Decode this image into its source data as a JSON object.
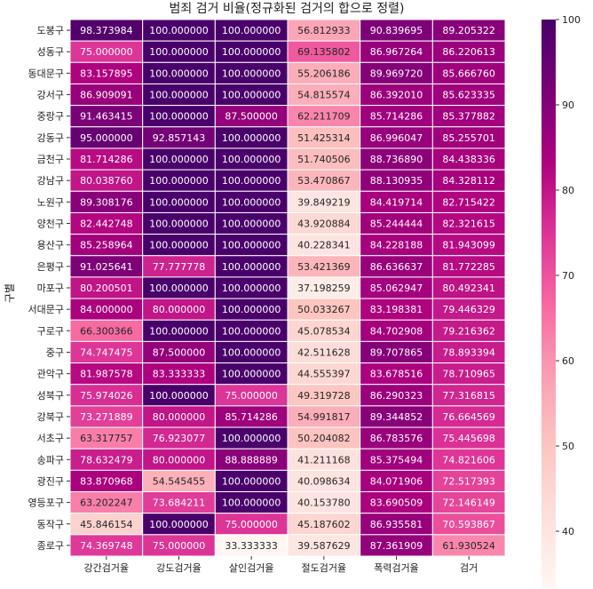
{
  "chart_data": {
    "type": "heatmap",
    "title": "범죄 검거 비율(정규화된 검거의 합으로 정렬)",
    "ylabel": "구별",
    "xlabel": "",
    "columns": [
      "강간검거율",
      "강도검거율",
      "살인검거율",
      "절도검거율",
      "폭력검거율",
      "검거"
    ],
    "rows": [
      "도봉구",
      "성동구",
      "동대문구",
      "강서구",
      "중랑구",
      "강동구",
      "금천구",
      "강남구",
      "노원구",
      "양천구",
      "용산구",
      "은평구",
      "마포구",
      "서대문구",
      "구로구",
      "중구",
      "관악구",
      "성북구",
      "강북구",
      "서초구",
      "송파구",
      "광진구",
      "영등포구",
      "동작구",
      "종로구"
    ],
    "values": [
      [
        98.373984,
        100.0,
        100.0,
        56.812933,
        90.839695,
        89.205322
      ],
      [
        75.0,
        100.0,
        100.0,
        69.135802,
        86.967264,
        86.220613
      ],
      [
        83.157895,
        100.0,
        100.0,
        55.206186,
        89.96972,
        85.66676
      ],
      [
        86.909091,
        100.0,
        100.0,
        54.815574,
        86.39201,
        85.623335
      ],
      [
        91.463415,
        100.0,
        87.5,
        62.211709,
        85.714286,
        85.377882
      ],
      [
        95.0,
        92.857143,
        100.0,
        51.425314,
        86.996047,
        85.255701
      ],
      [
        81.714286,
        100.0,
        100.0,
        51.740506,
        88.73689,
        84.438336
      ],
      [
        80.03876,
        100.0,
        100.0,
        53.470867,
        88.130935,
        84.328112
      ],
      [
        89.308176,
        100.0,
        100.0,
        39.849219,
        84.419714,
        82.715422
      ],
      [
        82.442748,
        100.0,
        100.0,
        43.920884,
        85.244444,
        82.321615
      ],
      [
        85.258964,
        100.0,
        100.0,
        40.228341,
        84.228188,
        81.943099
      ],
      [
        91.025641,
        77.777778,
        100.0,
        53.421369,
        86.636637,
        81.772285
      ],
      [
        80.200501,
        100.0,
        100.0,
        37.198259,
        85.062947,
        80.492341
      ],
      [
        84.0,
        80.0,
        100.0,
        50.033267,
        83.198381,
        79.446329
      ],
      [
        66.300366,
        100.0,
        100.0,
        45.078534,
        84.702908,
        79.216362
      ],
      [
        74.747475,
        87.5,
        100.0,
        42.511628,
        89.707865,
        78.893394
      ],
      [
        81.987578,
        83.333333,
        100.0,
        44.555397,
        83.678516,
        78.710965
      ],
      [
        75.974026,
        100.0,
        75.0,
        49.319728,
        86.290323,
        77.316815
      ],
      [
        73.271889,
        80.0,
        85.714286,
        54.991817,
        89.344852,
        76.664569
      ],
      [
        63.317757,
        76.923077,
        100.0,
        50.204082,
        86.783576,
        75.445698
      ],
      [
        78.632479,
        80.0,
        88.888889,
        41.211168,
        85.375494,
        74.821606
      ],
      [
        83.870968,
        54.545455,
        100.0,
        40.098634,
        84.071906,
        72.517393
      ],
      [
        63.202247,
        73.684211,
        100.0,
        40.15378,
        83.690509,
        72.146149
      ],
      [
        45.846154,
        100.0,
        75.0,
        45.187602,
        86.935581,
        70.593867
      ],
      [
        74.369748,
        75.0,
        33.333333,
        39.587629,
        87.361909,
        61.930524
      ]
    ],
    "color_range": [
      33.333333,
      100
    ],
    "colorbar_ticks": [
      40,
      50,
      60,
      70,
      80,
      90,
      100
    ],
    "colormap": "RdPu",
    "grid": false,
    "legend": "colorbar-right"
  }
}
